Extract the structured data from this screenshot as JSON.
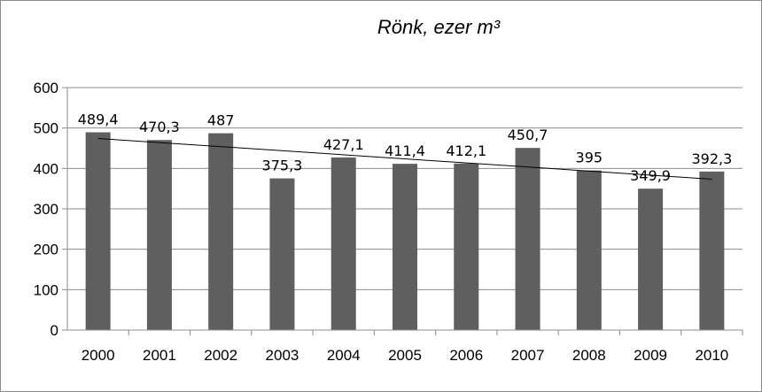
{
  "chart_data": {
    "type": "bar",
    "title": "Rönk, ezer m³",
    "xlabel": "",
    "ylabel": "",
    "categories": [
      "2000",
      "2001",
      "2002",
      "2003",
      "2004",
      "2005",
      "2006",
      "2007",
      "2008",
      "2009",
      "2010"
    ],
    "values": [
      489.4,
      470.3,
      487,
      375.3,
      427.1,
      411.4,
      412.1,
      450.7,
      395,
      349.9,
      392.3
    ],
    "value_labels": [
      "489,4",
      "470,3",
      "487",
      "375,3",
      "427,1",
      "411,4",
      "412,1",
      "450,7",
      "395",
      "349,9",
      "392,3"
    ],
    "ylim": [
      0,
      600
    ],
    "yticks": [
      0,
      100,
      200,
      300,
      400,
      500,
      600
    ],
    "grid": true,
    "trendline": "linear",
    "bar_color": "#5f5f5f",
    "grid_color": "#8c8c8c"
  }
}
